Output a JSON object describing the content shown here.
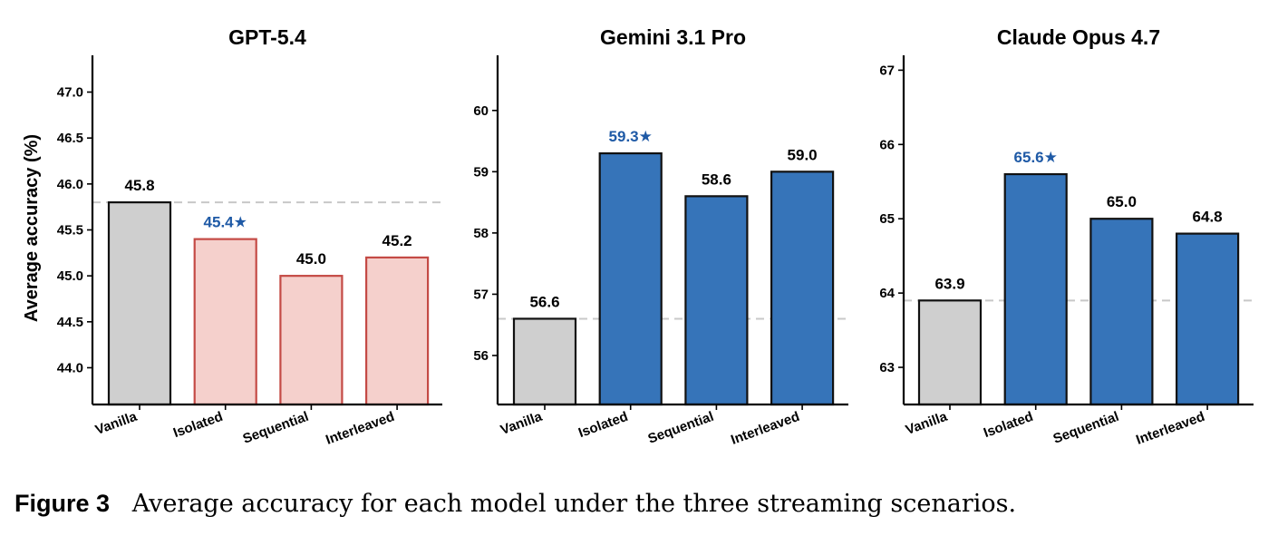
{
  "figure": {
    "label": "Figure 3",
    "caption": "Average accuracy for each model under the three streaming scenarios."
  },
  "colors": {
    "baseline_fill": "#cfcfcf",
    "baseline_edge": "#111111",
    "gpt_fill": "#f5d0cc",
    "gpt_edge": "#c44a45",
    "blue_fill": "#3674b9",
    "blue_edge": "#111111",
    "best_label": "#1f5aa6",
    "reference_line": "#c8c8c8"
  },
  "chart_data": [
    {
      "type": "bar",
      "title": "GPT-5.4",
      "ylabel": "Average accuracy (%)",
      "categories": [
        "Vanilla",
        "Isolated",
        "Sequential",
        "Interleaved"
      ],
      "values": [
        45.8,
        45.4,
        45.0,
        45.2
      ],
      "value_labels": [
        "45.8",
        "45.4★",
        "45.0",
        "45.2"
      ],
      "best_index": 1,
      "reference_line": 45.8,
      "ylim": [
        43.6,
        47.4
      ],
      "yticks": [
        44.0,
        44.5,
        45.0,
        45.5,
        46.0,
        46.5,
        47.0
      ],
      "ytick_labels": [
        "44.0",
        "44.5",
        "45.0",
        "45.5",
        "46.0",
        "46.5",
        "47.0"
      ],
      "palette": "red",
      "grid": false
    },
    {
      "type": "bar",
      "title": "Gemini 3.1 Pro",
      "ylabel": "",
      "categories": [
        "Vanilla",
        "Isolated",
        "Sequential",
        "Interleaved"
      ],
      "values": [
        56.6,
        59.3,
        58.6,
        59.0
      ],
      "value_labels": [
        "56.6",
        "59.3★",
        "58.6",
        "59.0"
      ],
      "best_index": 1,
      "reference_line": 56.6,
      "ylim": [
        55.2,
        60.9
      ],
      "yticks": [
        56,
        57,
        58,
        59,
        60
      ],
      "ytick_labels": [
        "56",
        "57",
        "58",
        "59",
        "60"
      ],
      "palette": "blue",
      "grid": false
    },
    {
      "type": "bar",
      "title": "Claude Opus 4.7",
      "ylabel": "",
      "categories": [
        "Vanilla",
        "Isolated",
        "Sequential",
        "Interleaved"
      ],
      "values": [
        63.9,
        65.6,
        65.0,
        64.8
      ],
      "value_labels": [
        "63.9",
        "65.6★",
        "65.0",
        "64.8"
      ],
      "best_index": 1,
      "reference_line": 63.9,
      "ylim": [
        62.5,
        67.2
      ],
      "yticks": [
        63,
        64,
        65,
        66,
        67
      ],
      "ytick_labels": [
        "63",
        "64",
        "65",
        "66",
        "67"
      ],
      "palette": "blue",
      "grid": false
    }
  ]
}
